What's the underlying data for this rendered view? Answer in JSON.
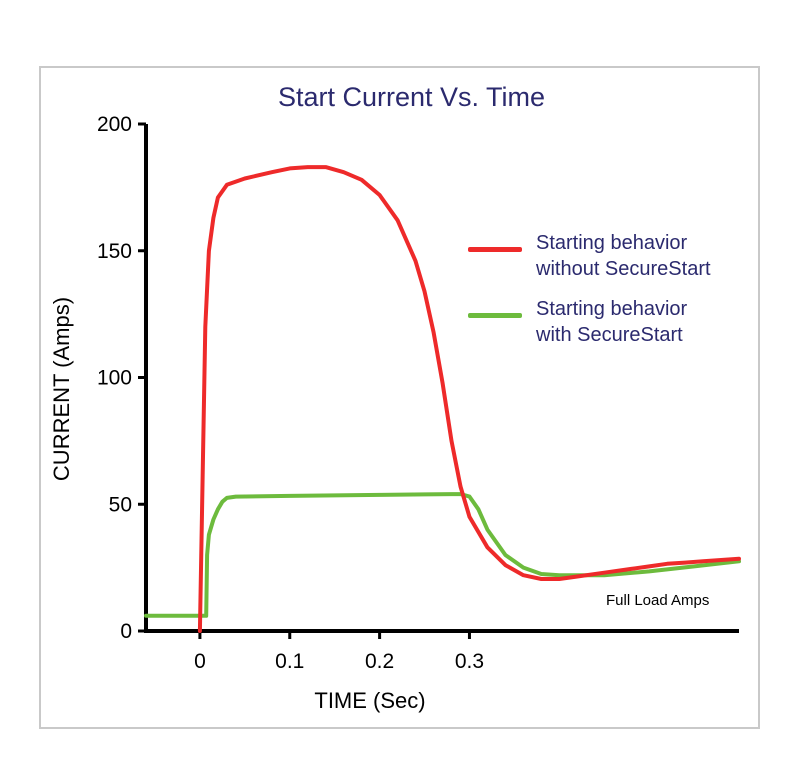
{
  "chart_data": {
    "type": "line",
    "title": "Start Current Vs. Time",
    "xlabel": "TIME (Sec)",
    "ylabel": "CURRENT (Amps)",
    "xlim": [
      -0.06,
      0.6
    ],
    "ylim": [
      0,
      200
    ],
    "x_ticks": [
      "0",
      "0.1",
      "0.2",
      "0.3"
    ],
    "y_ticks": [
      "0",
      "50",
      "100",
      "150",
      "200"
    ],
    "grid": false,
    "legend_position": "right",
    "series": [
      {
        "name": "Starting behavior without SecureStart",
        "label_lines": [
          "Starting behavior",
          "without SecureStart"
        ],
        "color": "#ee2a2a",
        "x": [
          -0.06,
          0.0,
          0.003,
          0.006,
          0.01,
          0.015,
          0.02,
          0.03,
          0.05,
          0.08,
          0.1,
          0.12,
          0.14,
          0.16,
          0.18,
          0.2,
          0.22,
          0.24,
          0.25,
          0.26,
          0.27,
          0.28,
          0.29,
          0.3,
          0.32,
          0.34,
          0.36,
          0.38,
          0.4,
          0.42,
          0.45,
          0.48,
          0.5,
          0.52,
          0.54,
          0.56,
          0.6
        ],
        "y": [
          null,
          0,
          60,
          120,
          150,
          163,
          171,
          176,
          178.5,
          181,
          182.5,
          183,
          183,
          181,
          178,
          172,
          162,
          146,
          134,
          118,
          98,
          75,
          57,
          45,
          33,
          26,
          22,
          20.5,
          20.5,
          21.5,
          23,
          24.5,
          25.5,
          26.5,
          27,
          27.5,
          28.5
        ]
      },
      {
        "name": "Starting behavior with SecureStart",
        "label_lines": [
          "Starting behavior",
          "with SecureStart"
        ],
        "color": "#6dbb3d",
        "x": [
          -0.06,
          0.0,
          0.007,
          0.008,
          0.01,
          0.015,
          0.02,
          0.025,
          0.03,
          0.04,
          0.1,
          0.2,
          0.25,
          0.28,
          0.29,
          0.3,
          0.31,
          0.32,
          0.34,
          0.36,
          0.38,
          0.4,
          0.45,
          0.5,
          0.55,
          0.6
        ],
        "y": [
          6,
          6,
          6,
          30,
          38,
          44,
          48,
          51,
          52.5,
          53,
          53.3,
          53.7,
          53.9,
          54,
          54,
          53,
          48,
          40,
          30,
          25,
          22.5,
          22,
          22,
          23.5,
          25.5,
          27.5
        ]
      }
    ],
    "annotations": [
      "Full Load Amps"
    ]
  }
}
